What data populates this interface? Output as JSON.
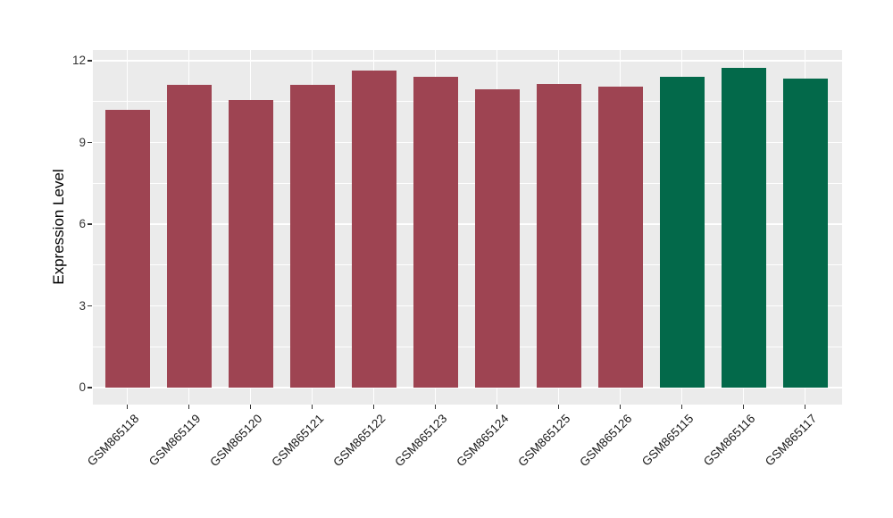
{
  "chart_data": {
    "type": "bar",
    "title": "",
    "xlabel": "",
    "ylabel": "Expression Level",
    "categories": [
      "GSM865118",
      "GSM865119",
      "GSM865120",
      "GSM865121",
      "GSM865122",
      "GSM865123",
      "GSM865124",
      "GSM865125",
      "GSM865126",
      "GSM865115",
      "GSM865116",
      "GSM865117"
    ],
    "values": [
      10.2,
      11.1,
      10.55,
      11.1,
      11.65,
      11.4,
      10.95,
      11.15,
      11.05,
      11.4,
      11.75,
      11.35
    ],
    "bar_colors": [
      "#9E4452",
      "#9E4452",
      "#9E4452",
      "#9E4452",
      "#9E4452",
      "#9E4452",
      "#9E4452",
      "#9E4452",
      "#9E4452",
      "#03694A",
      "#03694A",
      "#03694A"
    ],
    "color_groups": {
      "maroon": "#9E4452",
      "green": "#03694A"
    },
    "yticks": [
      0,
      3,
      6,
      9,
      12
    ],
    "ytick_labels": [
      "0",
      "3",
      "6",
      "9",
      "12"
    ],
    "minor_gridlines": [
      1.5,
      4.5,
      7.5,
      10.5
    ],
    "ylim": [
      0,
      12.4
    ],
    "grid": true,
    "legend_position": "none",
    "panel_background": "#EBEBEB",
    "gridline_color": "#FFFFFF",
    "outer_background": "#FFFFFF"
  }
}
